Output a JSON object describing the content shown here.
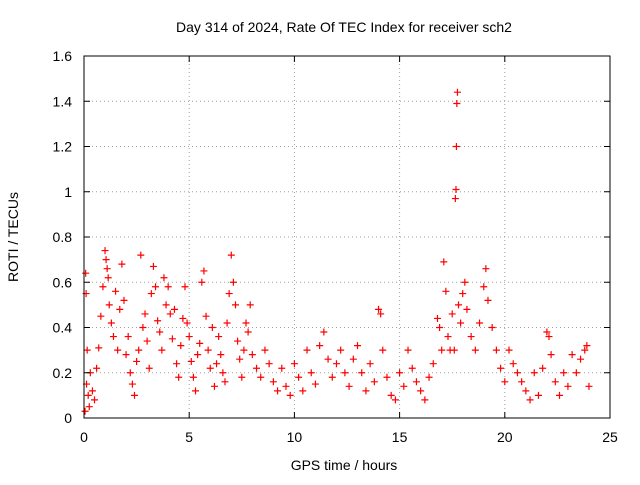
{
  "chart_data": {
    "type": "scatter",
    "title": "Day 314 of 2024, Rate Of TEC Index for receiver sch2",
    "xlabel": "GPS time / hours",
    "ylabel": "ROTI / TECUs",
    "xlim": [
      0,
      25
    ],
    "ylim": [
      0,
      1.6
    ],
    "xticks": [
      0,
      5,
      10,
      15,
      20,
      25
    ],
    "xtick_labels": [
      "0",
      "5",
      "10",
      "15",
      "20",
      "25"
    ],
    "yticks": [
      0,
      0.2,
      0.4,
      0.6,
      0.8,
      1,
      1.2,
      1.4,
      1.6
    ],
    "ytick_labels": [
      "0",
      "0.2",
      "0.4",
      "0.6",
      "0.8",
      "1",
      "1.2",
      "1.4",
      "1.6"
    ],
    "grid": true,
    "marker": "+",
    "color": "#ff0000",
    "series": [
      {
        "points": [
          [
            0.05,
            0.03
          ],
          [
            0.08,
            0.64
          ],
          [
            0.1,
            0.55
          ],
          [
            0.12,
            0.15
          ],
          [
            0.15,
            0.3
          ],
          [
            0.2,
            0.1
          ],
          [
            0.25,
            0.05
          ],
          [
            0.3,
            0.2
          ],
          [
            0.4,
            0.12
          ],
          [
            0.5,
            0.08
          ],
          [
            0.6,
            0.22
          ],
          [
            0.7,
            0.31
          ],
          [
            0.8,
            0.45
          ],
          [
            0.9,
            0.58
          ],
          [
            1.0,
            0.74
          ],
          [
            1.05,
            0.7
          ],
          [
            1.1,
            0.66
          ],
          [
            1.15,
            0.62
          ],
          [
            1.2,
            0.5
          ],
          [
            1.3,
            0.42
          ],
          [
            1.4,
            0.36
          ],
          [
            1.5,
            0.56
          ],
          [
            1.6,
            0.3
          ],
          [
            1.7,
            0.48
          ],
          [
            1.8,
            0.68
          ],
          [
            1.9,
            0.52
          ],
          [
            2.0,
            0.28
          ],
          [
            2.1,
            0.36
          ],
          [
            2.2,
            0.2
          ],
          [
            2.3,
            0.15
          ],
          [
            2.4,
            0.1
          ],
          [
            2.5,
            0.25
          ],
          [
            2.6,
            0.3
          ],
          [
            2.7,
            0.72
          ],
          [
            2.8,
            0.4
          ],
          [
            2.9,
            0.46
          ],
          [
            3.0,
            0.34
          ],
          [
            3.1,
            0.22
          ],
          [
            3.2,
            0.55
          ],
          [
            3.3,
            0.67
          ],
          [
            3.4,
            0.58
          ],
          [
            3.5,
            0.43
          ],
          [
            3.6,
            0.38
          ],
          [
            3.7,
            0.3
          ],
          [
            3.8,
            0.62
          ],
          [
            3.9,
            0.5
          ],
          [
            4.0,
            0.58
          ],
          [
            4.1,
            0.46
          ],
          [
            4.2,
            0.35
          ],
          [
            4.3,
            0.48
          ],
          [
            4.4,
            0.24
          ],
          [
            4.5,
            0.18
          ],
          [
            4.6,
            0.32
          ],
          [
            4.7,
            0.44
          ],
          [
            4.8,
            0.58
          ],
          [
            4.9,
            0.42
          ],
          [
            5.0,
            0.36
          ],
          [
            5.1,
            0.25
          ],
          [
            5.2,
            0.18
          ],
          [
            5.3,
            0.12
          ],
          [
            5.4,
            0.28
          ],
          [
            5.5,
            0.33
          ],
          [
            5.6,
            0.6
          ],
          [
            5.7,
            0.65
          ],
          [
            5.8,
            0.45
          ],
          [
            5.9,
            0.3
          ],
          [
            6.0,
            0.22
          ],
          [
            6.1,
            0.4
          ],
          [
            6.2,
            0.14
          ],
          [
            6.3,
            0.24
          ],
          [
            6.4,
            0.36
          ],
          [
            6.5,
            0.28
          ],
          [
            6.6,
            0.2
          ],
          [
            6.7,
            0.16
          ],
          [
            6.8,
            0.42
          ],
          [
            6.9,
            0.55
          ],
          [
            7.0,
            0.72
          ],
          [
            7.1,
            0.6
          ],
          [
            7.2,
            0.5
          ],
          [
            7.3,
            0.34
          ],
          [
            7.4,
            0.26
          ],
          [
            7.5,
            0.18
          ],
          [
            7.6,
            0.3
          ],
          [
            7.7,
            0.42
          ],
          [
            7.8,
            0.38
          ],
          [
            7.9,
            0.5
          ],
          [
            8.0,
            0.28
          ],
          [
            8.2,
            0.22
          ],
          [
            8.4,
            0.18
          ],
          [
            8.6,
            0.3
          ],
          [
            8.8,
            0.24
          ],
          [
            9.0,
            0.16
          ],
          [
            9.2,
            0.12
          ],
          [
            9.4,
            0.22
          ],
          [
            9.6,
            0.14
          ],
          [
            9.8,
            0.1
          ],
          [
            10.0,
            0.24
          ],
          [
            10.2,
            0.18
          ],
          [
            10.4,
            0.12
          ],
          [
            10.6,
            0.3
          ],
          [
            10.8,
            0.2
          ],
          [
            11.0,
            0.15
          ],
          [
            11.2,
            0.32
          ],
          [
            11.4,
            0.38
          ],
          [
            11.6,
            0.26
          ],
          [
            11.8,
            0.18
          ],
          [
            12.0,
            0.24
          ],
          [
            12.2,
            0.3
          ],
          [
            12.4,
            0.2
          ],
          [
            12.6,
            0.14
          ],
          [
            12.8,
            0.26
          ],
          [
            13.0,
            0.32
          ],
          [
            13.2,
            0.2
          ],
          [
            13.4,
            0.12
          ],
          [
            13.6,
            0.24
          ],
          [
            13.8,
            0.16
          ],
          [
            14.0,
            0.48
          ],
          [
            14.1,
            0.46
          ],
          [
            14.2,
            0.3
          ],
          [
            14.4,
            0.18
          ],
          [
            14.6,
            0.1
          ],
          [
            14.8,
            0.08
          ],
          [
            15.0,
            0.2
          ],
          [
            15.2,
            0.14
          ],
          [
            15.4,
            0.3
          ],
          [
            15.6,
            0.22
          ],
          [
            15.8,
            0.16
          ],
          [
            16.0,
            0.12
          ],
          [
            16.2,
            0.08
          ],
          [
            16.4,
            0.18
          ],
          [
            16.6,
            0.24
          ],
          [
            16.8,
            0.44
          ],
          [
            16.9,
            0.4
          ],
          [
            17.0,
            0.3
          ],
          [
            17.1,
            0.69
          ],
          [
            17.2,
            0.56
          ],
          [
            17.3,
            0.36
          ],
          [
            17.4,
            0.3
          ],
          [
            17.5,
            0.46
          ],
          [
            17.6,
            0.3
          ],
          [
            17.65,
            0.97
          ],
          [
            17.68,
            1.01
          ],
          [
            17.7,
            1.2
          ],
          [
            17.72,
            1.39
          ],
          [
            17.75,
            1.44
          ],
          [
            17.8,
            0.5
          ],
          [
            17.9,
            0.42
          ],
          [
            18.0,
            0.55
          ],
          [
            18.1,
            0.6
          ],
          [
            18.2,
            0.48
          ],
          [
            18.4,
            0.36
          ],
          [
            18.6,
            0.3
          ],
          [
            18.8,
            0.42
          ],
          [
            19.0,
            0.58
          ],
          [
            19.1,
            0.66
          ],
          [
            19.2,
            0.52
          ],
          [
            19.4,
            0.4
          ],
          [
            19.6,
            0.3
          ],
          [
            19.8,
            0.22
          ],
          [
            20.0,
            0.16
          ],
          [
            20.2,
            0.3
          ],
          [
            20.4,
            0.24
          ],
          [
            20.6,
            0.2
          ],
          [
            20.8,
            0.16
          ],
          [
            21.0,
            0.12
          ],
          [
            21.2,
            0.08
          ],
          [
            21.4,
            0.2
          ],
          [
            21.6,
            0.1
          ],
          [
            21.8,
            0.22
          ],
          [
            22.0,
            0.38
          ],
          [
            22.1,
            0.36
          ],
          [
            22.2,
            0.28
          ],
          [
            22.4,
            0.16
          ],
          [
            22.6,
            0.1
          ],
          [
            22.8,
            0.2
          ],
          [
            23.0,
            0.14
          ],
          [
            23.2,
            0.28
          ],
          [
            23.4,
            0.2
          ],
          [
            23.6,
            0.26
          ],
          [
            23.8,
            0.3
          ],
          [
            23.9,
            0.32
          ],
          [
            24.0,
            0.14
          ]
        ]
      }
    ]
  }
}
